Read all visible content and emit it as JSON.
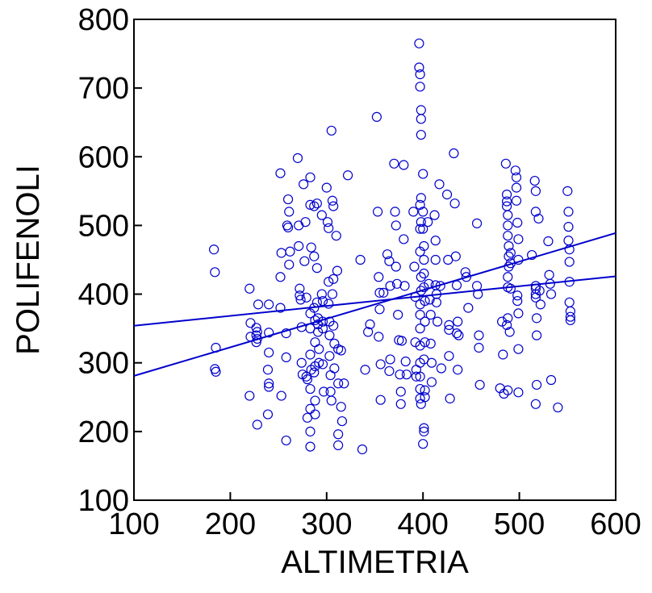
{
  "colors": {
    "series": "#0000cc",
    "axis": "#000000",
    "background": "#ffffff"
  },
  "chart_data": {
    "type": "scatter",
    "xlabel": "ALTIMETRIA",
    "ylabel": "POLIFENOLI",
    "xlim": [
      100,
      600
    ],
    "ylim": [
      100,
      800
    ],
    "xticks": [
      "100",
      "200",
      "300",
      "400",
      "500",
      "600"
    ],
    "yticks": [
      "100",
      "200",
      "300",
      "400",
      "500",
      "600",
      "700",
      "800"
    ],
    "grid": false,
    "marker": "open-circle",
    "series": [
      {
        "points": [
          [
            183,
            465
          ],
          [
            184,
            432
          ],
          [
            185,
            322
          ],
          [
            184,
            291
          ],
          [
            185,
            287
          ],
          [
            220,
            408
          ],
          [
            221,
            358
          ],
          [
            221,
            338
          ],
          [
            220,
            252
          ],
          [
            227,
            351
          ],
          [
            228,
            345
          ],
          [
            227,
            340
          ],
          [
            228,
            335
          ],
          [
            227,
            330
          ],
          [
            229,
            385
          ],
          [
            228,
            210
          ],
          [
            240,
            385
          ],
          [
            240,
            344
          ],
          [
            240,
            315
          ],
          [
            239,
            290
          ],
          [
            240,
            270
          ],
          [
            240,
            265
          ],
          [
            239,
            225
          ],
          [
            252,
            576
          ],
          [
            253,
            460
          ],
          [
            252,
            425
          ],
          [
            252,
            380
          ],
          [
            253,
            252
          ],
          [
            258,
            187
          ],
          [
            258,
            308
          ],
          [
            258,
            343
          ],
          [
            259,
            500
          ],
          [
            260,
            538
          ],
          [
            261,
            520
          ],
          [
            262,
            462
          ],
          [
            261,
            443
          ],
          [
            260,
            497
          ],
          [
            270,
            598
          ],
          [
            271,
            500
          ],
          [
            271,
            470
          ],
          [
            272,
            408
          ],
          [
            272,
            398
          ],
          [
            273,
            392
          ],
          [
            274,
            352
          ],
          [
            274,
            300
          ],
          [
            275,
            283
          ],
          [
            276,
            560
          ],
          [
            277,
            448
          ],
          [
            278,
            505
          ],
          [
            279,
            395
          ],
          [
            279,
            280
          ],
          [
            280,
            276
          ],
          [
            280,
            220
          ],
          [
            283,
            570
          ],
          [
            283,
            530
          ],
          [
            284,
            468
          ],
          [
            283,
            372
          ],
          [
            283,
            350
          ],
          [
            283,
            312
          ],
          [
            284,
            290
          ],
          [
            283,
            262
          ],
          [
            283,
            233
          ],
          [
            283,
            200
          ],
          [
            283,
            178
          ],
          [
            287,
            528
          ],
          [
            287,
            455
          ],
          [
            287,
            380
          ],
          [
            288,
            362
          ],
          [
            288,
            330
          ],
          [
            288,
            295
          ],
          [
            287,
            286
          ],
          [
            288,
            245
          ],
          [
            288,
            225
          ],
          [
            290,
            532
          ],
          [
            290,
            438
          ],
          [
            290,
            388
          ],
          [
            291,
            365
          ],
          [
            291,
            356
          ],
          [
            291,
            345
          ],
          [
            292,
            320
          ],
          [
            292,
            300
          ],
          [
            295,
            515
          ],
          [
            295,
            400
          ],
          [
            296,
            390
          ],
          [
            296,
            360
          ],
          [
            296,
            350
          ],
          [
            296,
            298
          ],
          [
            297,
            258
          ],
          [
            300,
            555
          ],
          [
            301,
            505
          ],
          [
            302,
            496
          ],
          [
            302,
            418
          ],
          [
            302,
            386
          ],
          [
            303,
            360
          ],
          [
            303,
            340
          ],
          [
            303,
            310
          ],
          [
            304,
            282
          ],
          [
            304,
            258
          ],
          [
            305,
            245
          ],
          [
            305,
            638
          ],
          [
            306,
            536
          ],
          [
            307,
            528
          ],
          [
            307,
            422
          ],
          [
            306,
            400
          ],
          [
            307,
            354
          ],
          [
            308,
            328
          ],
          [
            308,
            292
          ],
          [
            310,
            485
          ],
          [
            311,
            434
          ],
          [
            312,
            320
          ],
          [
            312,
            270
          ],
          [
            312,
            196
          ],
          [
            312,
            180
          ],
          [
            315,
            318
          ],
          [
            315,
            236
          ],
          [
            316,
            215
          ],
          [
            318,
            270
          ],
          [
            322,
            573
          ],
          [
            335,
            450
          ],
          [
            337,
            174
          ],
          [
            340,
            290
          ],
          [
            343,
            345
          ],
          [
            345,
            356
          ],
          [
            352,
            658
          ],
          [
            353,
            520
          ],
          [
            354,
            425
          ],
          [
            355,
            402
          ],
          [
            355,
            378
          ],
          [
            354,
            338
          ],
          [
            356,
            298
          ],
          [
            356,
            246
          ],
          [
            359,
            402
          ],
          [
            363,
            458
          ],
          [
            365,
            448
          ],
          [
            366,
            412
          ],
          [
            366,
            305
          ],
          [
            365,
            288
          ],
          [
            370,
            590
          ],
          [
            371,
            520
          ],
          [
            372,
            500
          ],
          [
            372,
            440
          ],
          [
            373,
            415
          ],
          [
            374,
            370
          ],
          [
            375,
            333
          ],
          [
            376,
            283
          ],
          [
            377,
            240
          ],
          [
            377,
            258
          ],
          [
            378,
            332
          ],
          [
            380,
            588
          ],
          [
            380,
            480
          ],
          [
            381,
            412
          ],
          [
            382,
            302
          ],
          [
            383,
            283
          ],
          [
            390,
            520
          ],
          [
            391,
            440
          ],
          [
            392,
            396
          ],
          [
            392,
            330
          ],
          [
            393,
            290
          ],
          [
            393,
            280
          ],
          [
            396,
            765
          ],
          [
            396,
            730
          ],
          [
            397,
            720
          ],
          [
            397,
            702
          ],
          [
            398,
            668
          ],
          [
            398,
            655
          ],
          [
            398,
            632
          ],
          [
            398,
            540
          ],
          [
            397,
            530
          ],
          [
            398,
            505
          ],
          [
            397,
            495
          ],
          [
            397,
            462
          ],
          [
            398,
            425
          ],
          [
            398,
            405
          ],
          [
            397,
            385
          ],
          [
            397,
            370
          ],
          [
            397,
            350
          ],
          [
            397,
            325
          ],
          [
            397,
            300
          ],
          [
            397,
            280
          ],
          [
            397,
            262
          ],
          [
            397,
            248
          ],
          [
            398,
            240
          ],
          [
            400,
            575
          ],
          [
            400,
            520
          ],
          [
            400,
            495
          ],
          [
            401,
            470
          ],
          [
            401,
            450
          ],
          [
            401,
            430
          ],
          [
            401,
            410
          ],
          [
            402,
            390
          ],
          [
            402,
            360
          ],
          [
            402,
            330
          ],
          [
            401,
            305
          ],
          [
            402,
            260
          ],
          [
            402,
            250
          ],
          [
            401,
            205
          ],
          [
            401,
            200
          ],
          [
            400,
            182
          ],
          [
            405,
            505
          ],
          [
            406,
            415
          ],
          [
            407,
            392
          ],
          [
            408,
            370
          ],
          [
            408,
            328
          ],
          [
            409,
            300
          ],
          [
            409,
            272
          ],
          [
            412,
            515
          ],
          [
            413,
            478
          ],
          [
            413,
            450
          ],
          [
            413,
            413
          ],
          [
            414,
            400
          ],
          [
            414,
            388
          ],
          [
            415,
            360
          ],
          [
            417,
            560
          ],
          [
            418,
            412
          ],
          [
            419,
            292
          ],
          [
            425,
            545
          ],
          [
            426,
            450
          ],
          [
            427,
            355
          ],
          [
            427,
            348
          ],
          [
            427,
            310
          ],
          [
            428,
            248
          ],
          [
            432,
            605
          ],
          [
            433,
            532
          ],
          [
            434,
            455
          ],
          [
            435,
            413
          ],
          [
            436,
            360
          ],
          [
            435,
            343
          ],
          [
            436,
            290
          ],
          [
            437,
            340
          ],
          [
            444,
            432
          ],
          [
            445,
            425
          ],
          [
            447,
            380
          ],
          [
            456,
            503
          ],
          [
            456,
            412
          ],
          [
            457,
            400
          ],
          [
            458,
            340
          ],
          [
            458,
            322
          ],
          [
            459,
            268
          ],
          [
            480,
            263
          ],
          [
            482,
            360
          ],
          [
            483,
            312
          ],
          [
            484,
            255
          ],
          [
            486,
            590
          ],
          [
            487,
            545
          ],
          [
            487,
            535
          ],
          [
            487,
            528
          ],
          [
            488,
            515
          ],
          [
            488,
            500
          ],
          [
            488,
            485
          ],
          [
            489,
            470
          ],
          [
            489,
            455
          ],
          [
            489,
            440
          ],
          [
            488,
            425
          ],
          [
            488,
            410
          ],
          [
            488,
            365
          ],
          [
            487,
            355
          ],
          [
            488,
            260
          ],
          [
            491,
            460
          ],
          [
            491,
            445
          ],
          [
            491,
            408
          ],
          [
            490,
            345
          ],
          [
            496,
            580
          ],
          [
            497,
            570
          ],
          [
            497,
            555
          ],
          [
            497,
            536
          ],
          [
            498,
            504
          ],
          [
            499,
            480
          ],
          [
            499,
            450
          ],
          [
            498,
            398
          ],
          [
            498,
            390
          ],
          [
            499,
            372
          ],
          [
            499,
            320
          ],
          [
            499,
            257
          ],
          [
            513,
            457
          ],
          [
            516,
            565
          ],
          [
            517,
            550
          ],
          [
            517,
            520
          ],
          [
            517,
            412
          ],
          [
            517,
            408
          ],
          [
            517,
            400
          ],
          [
            517,
            395
          ],
          [
            518,
            365
          ],
          [
            518,
            340
          ],
          [
            518,
            268
          ],
          [
            517,
            240
          ],
          [
            520,
            510
          ],
          [
            521,
            405
          ],
          [
            522,
            385
          ],
          [
            530,
            477
          ],
          [
            531,
            428
          ],
          [
            532,
            415
          ],
          [
            533,
            400
          ],
          [
            533,
            275
          ],
          [
            540,
            235
          ],
          [
            550,
            550
          ],
          [
            551,
            520
          ],
          [
            551,
            498
          ],
          [
            551,
            478
          ],
          [
            552,
            465
          ],
          [
            552,
            447
          ],
          [
            552,
            418
          ],
          [
            552,
            388
          ],
          [
            553,
            375
          ],
          [
            553,
            367
          ],
          [
            553,
            362
          ]
        ]
      }
    ],
    "fit_lines": [
      {
        "x": [
          100,
          600
        ],
        "y": [
          281,
          489
        ]
      },
      {
        "x": [
          100,
          600
        ],
        "y": [
          354,
          426
        ]
      }
    ]
  }
}
